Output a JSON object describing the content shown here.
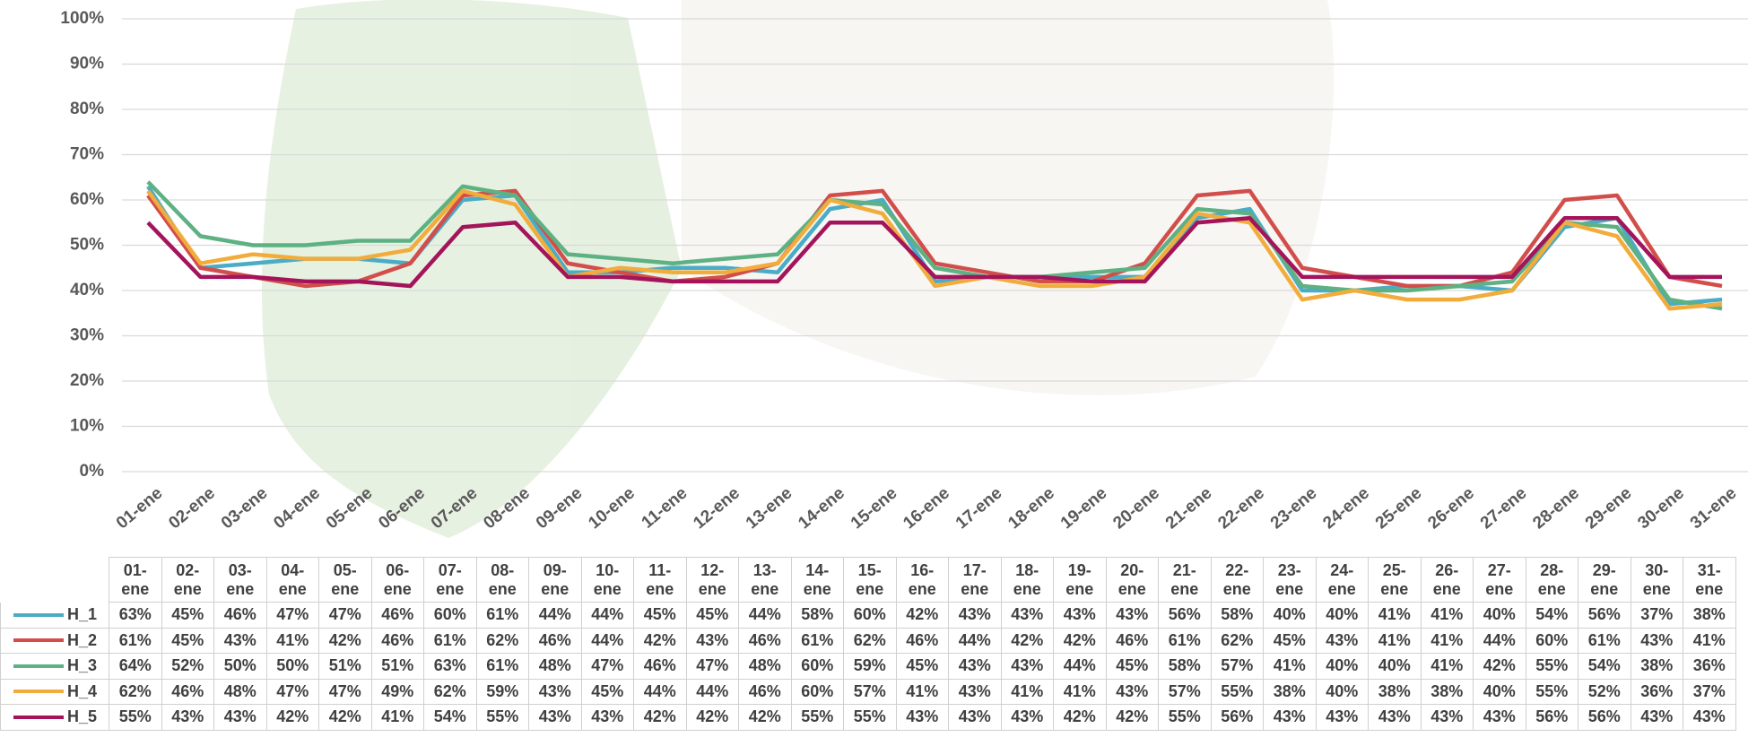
{
  "chart_data": {
    "type": "line",
    "categories": [
      "01-ene",
      "02-ene",
      "03-ene",
      "04-ene",
      "05-ene",
      "06-ene",
      "07-ene",
      "08-ene",
      "09-ene",
      "10-ene",
      "11-ene",
      "12-ene",
      "13-ene",
      "14-ene",
      "15-ene",
      "16-ene",
      "17-ene",
      "18-ene",
      "19-ene",
      "20-ene",
      "21-ene",
      "22-ene",
      "23-ene",
      "24-ene",
      "25-ene",
      "26-ene",
      "27-ene",
      "28-ene",
      "29-ene",
      "30-ene",
      "31-ene"
    ],
    "ylim": [
      0,
      100
    ],
    "yticks": [
      {
        "value": 0,
        "label": "0%"
      },
      {
        "value": 10,
        "label": "10%"
      },
      {
        "value": 20,
        "label": "20%"
      },
      {
        "value": 30,
        "label": "30%"
      },
      {
        "value": 40,
        "label": "40%"
      },
      {
        "value": 50,
        "label": "50%"
      },
      {
        "value": 60,
        "label": "60%"
      },
      {
        "value": 70,
        "label": "70%"
      },
      {
        "value": 80,
        "label": "80%"
      },
      {
        "value": 90,
        "label": "90%"
      },
      {
        "value": 100,
        "label": "100%"
      }
    ],
    "grid": true,
    "series": [
      {
        "name": "H_1",
        "color": "#4aacc5",
        "values": [
          63,
          45,
          46,
          47,
          47,
          46,
          60,
          61,
          44,
          44,
          45,
          45,
          44,
          58,
          60,
          42,
          43,
          43,
          43,
          43,
          56,
          58,
          40,
          40,
          41,
          41,
          40,
          54,
          56,
          37,
          38
        ],
        "value_labels": [
          "63%",
          "45%",
          "46%",
          "47%",
          "47%",
          "46%",
          "60%",
          "61%",
          "44%",
          "44%",
          "45%",
          "45%",
          "44%",
          "58%",
          "60%",
          "42%",
          "43%",
          "43%",
          "43%",
          "43%",
          "56%",
          "58%",
          "40%",
          "40%",
          "41%",
          "41%",
          "40%",
          "54%",
          "56%",
          "37%",
          "38%"
        ]
      },
      {
        "name": "H_2",
        "color": "#d24e4b",
        "values": [
          61,
          45,
          43,
          41,
          42,
          46,
          61,
          62,
          46,
          44,
          42,
          43,
          46,
          61,
          62,
          46,
          44,
          42,
          42,
          46,
          61,
          62,
          45,
          43,
          41,
          41,
          44,
          60,
          61,
          43,
          41
        ],
        "value_labels": [
          "61%",
          "45%",
          "43%",
          "41%",
          "42%",
          "46%",
          "61%",
          "62%",
          "46%",
          "44%",
          "42%",
          "43%",
          "46%",
          "61%",
          "62%",
          "46%",
          "44%",
          "42%",
          "42%",
          "46%",
          "61%",
          "62%",
          "45%",
          "43%",
          "41%",
          "41%",
          "44%",
          "60%",
          "61%",
          "43%",
          "41%"
        ]
      },
      {
        "name": "H_3",
        "color": "#5db183",
        "values": [
          64,
          52,
          50,
          50,
          51,
          51,
          63,
          61,
          48,
          47,
          46,
          47,
          48,
          60,
          59,
          45,
          43,
          43,
          44,
          45,
          58,
          57,
          41,
          40,
          40,
          41,
          42,
          55,
          54,
          38,
          36
        ],
        "value_labels": [
          "64%",
          "52%",
          "50%",
          "50%",
          "51%",
          "51%",
          "63%",
          "61%",
          "48%",
          "47%",
          "46%",
          "47%",
          "48%",
          "60%",
          "59%",
          "45%",
          "43%",
          "43%",
          "44%",
          "45%",
          "58%",
          "57%",
          "41%",
          "40%",
          "40%",
          "41%",
          "42%",
          "55%",
          "54%",
          "38%",
          "36%"
        ]
      },
      {
        "name": "H_4",
        "color": "#f2ac3c",
        "values": [
          62,
          46,
          48,
          47,
          47,
          49,
          62,
          59,
          43,
          45,
          44,
          44,
          46,
          60,
          57,
          41,
          43,
          41,
          41,
          43,
          57,
          55,
          38,
          40,
          38,
          38,
          40,
          55,
          52,
          36,
          37
        ],
        "value_labels": [
          "62%",
          "46%",
          "48%",
          "47%",
          "47%",
          "49%",
          "62%",
          "59%",
          "43%",
          "45%",
          "44%",
          "44%",
          "46%",
          "60%",
          "57%",
          "41%",
          "43%",
          "41%",
          "41%",
          "43%",
          "57%",
          "55%",
          "38%",
          "40%",
          "38%",
          "38%",
          "40%",
          "55%",
          "52%",
          "36%",
          "37%"
        ]
      },
      {
        "name": "H_5",
        "color": "#a3145b",
        "values": [
          55,
          43,
          43,
          42,
          42,
          41,
          54,
          55,
          43,
          43,
          42,
          42,
          42,
          55,
          55,
          43,
          43,
          43,
          42,
          42,
          55,
          56,
          43,
          43,
          43,
          43,
          43,
          56,
          56,
          43,
          43
        ],
        "value_labels": [
          "55%",
          "43%",
          "43%",
          "42%",
          "42%",
          "41%",
          "54%",
          "55%",
          "43%",
          "43%",
          "42%",
          "42%",
          "42%",
          "55%",
          "55%",
          "43%",
          "43%",
          "43%",
          "42%",
          "42%",
          "55%",
          "56%",
          "43%",
          "43%",
          "43%",
          "43%",
          "43%",
          "56%",
          "56%",
          "43%",
          "43%"
        ]
      }
    ]
  }
}
